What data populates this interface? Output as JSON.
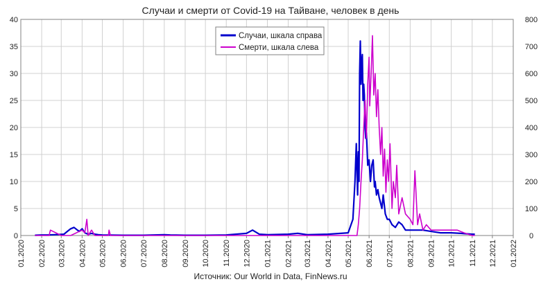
{
  "chart_data": {
    "type": "line",
    "title": "Случаи и смерти от Covid-19 на Тайване, человек в день",
    "source": "Источник: Our World in Data, FinNews.ru",
    "x_labels": [
      "01.2020",
      "02.2020",
      "03.2020",
      "04.2020",
      "05.2020",
      "06.2020",
      "07.2020",
      "08.2020",
      "09.2020",
      "10.2020",
      "11.2020",
      "12.2020",
      "01.2021",
      "02.2021",
      "03.2021",
      "04.2021",
      "05.2021",
      "06.2021",
      "07.2021",
      "08.2021",
      "09.2021",
      "10.2021",
      "11.2021",
      "12.2021",
      "01.2022"
    ],
    "y_left": {
      "min": 0,
      "max": 40,
      "ticks": [
        0,
        5,
        10,
        15,
        20,
        25,
        30,
        35,
        40
      ]
    },
    "y_right": {
      "min": 0,
      "max": 800,
      "ticks": [
        0,
        100,
        200,
        300,
        400,
        500,
        600,
        700,
        800
      ]
    },
    "grid": true,
    "legend_position": "top-center",
    "series": [
      {
        "name": "Случаи, шкала справа",
        "axis": "right",
        "color": "#0000cc",
        "x": [
          "2020-01-22",
          "2020-02-01",
          "2020-02-10",
          "2020-02-20",
          "2020-03-05",
          "2020-03-10",
          "2020-03-15",
          "2020-03-20",
          "2020-03-25",
          "2020-03-28",
          "2020-04-01",
          "2020-04-05",
          "2020-04-10",
          "2020-04-15",
          "2020-04-20",
          "2020-04-25",
          "2020-05-01",
          "2020-06-01",
          "2020-07-01",
          "2020-08-01",
          "2020-08-10",
          "2020-09-01",
          "2020-10-01",
          "2020-11-01",
          "2020-12-01",
          "2020-12-10",
          "2020-12-20",
          "2021-01-01",
          "2021-02-01",
          "2021-02-15",
          "2021-03-01",
          "2021-04-01",
          "2021-04-20",
          "2021-05-01",
          "2021-05-08",
          "2021-05-11",
          "2021-05-13",
          "2021-05-15",
          "2021-05-16",
          "2021-05-17",
          "2021-05-18",
          "2021-05-19",
          "2021-05-20",
          "2021-05-21",
          "2021-05-22",
          "2021-05-23",
          "2021-05-24",
          "2021-05-25",
          "2021-05-26",
          "2021-05-27",
          "2021-05-28",
          "2021-05-30",
          "2021-06-01",
          "2021-06-03",
          "2021-06-05",
          "2021-06-07",
          "2021-06-09",
          "2021-06-10",
          "2021-06-12",
          "2021-06-14",
          "2021-06-16",
          "2021-06-18",
          "2021-06-20",
          "2021-06-22",
          "2021-06-25",
          "2021-06-28",
          "2021-07-01",
          "2021-07-05",
          "2021-07-10",
          "2021-07-15",
          "2021-07-20",
          "2021-07-25",
          "2021-08-01",
          "2021-08-10",
          "2021-08-20",
          "2021-09-01",
          "2021-09-15",
          "2021-10-01",
          "2021-10-15",
          "2021-11-01",
          "2021-11-05"
        ],
        "values": [
          1,
          2,
          2,
          3,
          5,
          15,
          25,
          30,
          20,
          15,
          25,
          10,
          5,
          8,
          5,
          3,
          2,
          1,
          1,
          3,
          2,
          1,
          1,
          2,
          8,
          20,
          5,
          3,
          5,
          8,
          3,
          5,
          8,
          10,
          60,
          200,
          340,
          150,
          310,
          200,
          600,
          720,
          560,
          640,
          670,
          500,
          560,
          520,
          400,
          360,
          380,
          260,
          280,
          200,
          260,
          280,
          180,
          200,
          150,
          170,
          140,
          120,
          100,
          150,
          80,
          60,
          60,
          40,
          30,
          50,
          40,
          20,
          20,
          20,
          20,
          15,
          10,
          10,
          8,
          5,
          5
        ]
      },
      {
        "name": "Смерти, шкала слева",
        "axis": "left",
        "color": "#cc00cc",
        "x": [
          "2020-01-22",
          "2020-02-12",
          "2020-02-14",
          "2020-03-01",
          "2020-03-15",
          "2020-04-01",
          "2020-04-05",
          "2020-04-08",
          "2020-04-10",
          "2020-04-15",
          "2020-04-20",
          "2020-05-01",
          "2020-05-10",
          "2020-05-11",
          "2020-05-13",
          "2020-06-01",
          "2021-01-01",
          "2021-02-01",
          "2021-03-01",
          "2021-04-01",
          "2021-05-01",
          "2021-05-10",
          "2021-05-14",
          "2021-05-16",
          "2021-05-18",
          "2021-05-20",
          "2021-05-22",
          "2021-05-24",
          "2021-05-26",
          "2021-05-28",
          "2021-05-30",
          "2021-06-01",
          "2021-06-02",
          "2021-06-04",
          "2021-06-06",
          "2021-06-08",
          "2021-06-10",
          "2021-06-12",
          "2021-06-14",
          "2021-06-16",
          "2021-06-18",
          "2021-06-20",
          "2021-06-22",
          "2021-06-24",
          "2021-06-26",
          "2021-06-28",
          "2021-06-30",
          "2021-07-02",
          "2021-07-05",
          "2021-07-07",
          "2021-07-10",
          "2021-07-12",
          "2021-07-15",
          "2021-07-20",
          "2021-07-25",
          "2021-08-01",
          "2021-08-05",
          "2021-08-08",
          "2021-08-12",
          "2021-08-15",
          "2021-08-20",
          "2021-08-25",
          "2021-09-01",
          "2021-09-10",
          "2021-09-20",
          "2021-10-01",
          "2021-10-10",
          "2021-10-20",
          "2021-11-01",
          "2021-11-05"
        ],
        "values": [
          0,
          0,
          1,
          0,
          0,
          1,
          0.5,
          3,
          0,
          1,
          0,
          0,
          0,
          1,
          0,
          0,
          0,
          0,
          0,
          0,
          0,
          0,
          0,
          2,
          5,
          10,
          14,
          20,
          25,
          18,
          28,
          33,
          24,
          30,
          37,
          26,
          30,
          22,
          27,
          20,
          15,
          20,
          11,
          16,
          8,
          14,
          10,
          17,
          5,
          10,
          7,
          13,
          4,
          7,
          4,
          3,
          2,
          12,
          2,
          4,
          1,
          2,
          1,
          1,
          1,
          1,
          1,
          0.5,
          0,
          0
        ]
      }
    ]
  }
}
